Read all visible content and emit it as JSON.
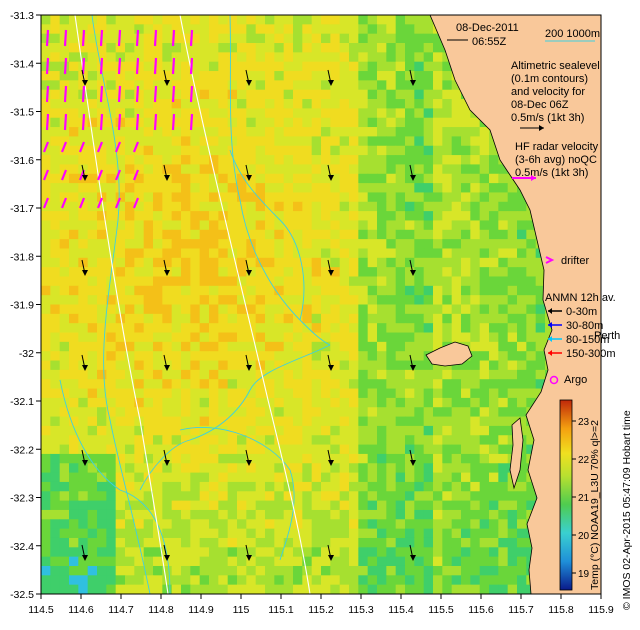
{
  "header": {
    "date": "08-Dec-2011",
    "time": "06:55Z",
    "scale_label": "200  1000m"
  },
  "legend_altimetry": {
    "line1": "Altimetric sealevel",
    "line2": "(0.1m contours)",
    "line3": "and velocity for",
    "line4": "08-Dec 06Z",
    "line5": "0.5m/s (1kt 3h)"
  },
  "legend_hf": {
    "line1": "HF radar velocity",
    "line2": "(3-6h avg) noQC",
    "line3": "0.5m/s (1kt 3h)"
  },
  "legend_drifter": "drifter",
  "legend_anmn": {
    "title": "ANMN 12h av.",
    "items": [
      "0-30m",
      "30-80m",
      "80-150m",
      "150-300m"
    ],
    "colors": [
      "#000000",
      "#0000ff",
      "#00c8ff",
      "#ff0000"
    ]
  },
  "place_perth": "Perth",
  "legend_argo": "Argo",
  "colorbar": {
    "label": "Temp (°C) NOAA19_L3U 70% ql>=2",
    "ticks": [
      "19",
      "20",
      "21",
      "22",
      "23"
    ]
  },
  "credit": "© IMOS 02-Apr-2015 05:47:09 Hobart time",
  "axes": {
    "x_ticks": [
      "114.5",
      "114.6",
      "114.7",
      "114.8",
      "114.9",
      "115",
      "115.1",
      "115.2",
      "115.3",
      "115.4",
      "115.5",
      "115.6",
      "115.7",
      "115.8",
      "115.9"
    ],
    "y_ticks": [
      "-31.3",
      "-31.4",
      "-31.5",
      "-31.6",
      "-31.7",
      "-31.8",
      "-31.9",
      "-32",
      "-32.1",
      "-32.2",
      "-32.3",
      "-32.4",
      "-32.5"
    ],
    "xlim": [
      114.5,
      115.9
    ],
    "ylim": [
      -32.5,
      -31.3
    ]
  },
  "colors": {
    "land": "#f9c89a",
    "hf_arrow": "#ff00ff",
    "alt_arrow": "#000000"
  }
}
